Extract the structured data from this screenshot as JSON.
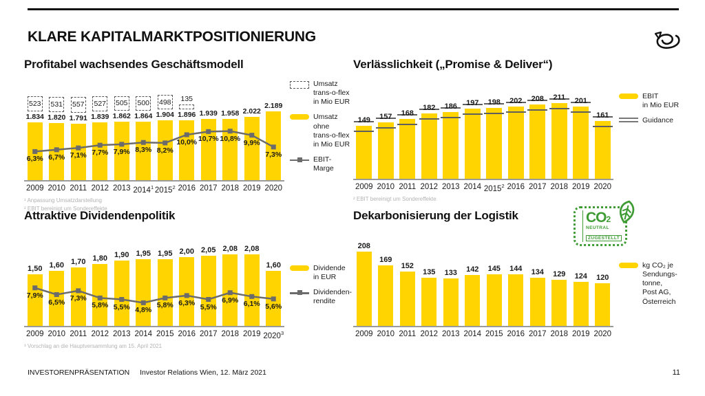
{
  "header": {
    "title": "KLARE KAPITALMARKTPOSITIONIERUNG"
  },
  "footer": {
    "label": "INVESTORENPRÄSENTATION",
    "sub": "Investor Relations Wien, 12. März 2021",
    "page": "11"
  },
  "badge": {
    "co": "CO",
    "sub": "2",
    "neutral": "NEUTRAL",
    "zugestellt": "ZUGESTELLT"
  },
  "colors": {
    "brand_yellow": "#FFD400",
    "line_gray": "#6b6b6b",
    "guidance_gray": "#5f5f5f",
    "badge_green": "#3f9c35"
  },
  "chart_data": [
    {
      "id": "umsatz",
      "type": "bar",
      "title": "Profitabel wachsendes Geschäftsmodell",
      "xlabel": "",
      "ylabel": "",
      "grid": false,
      "legend_position": "right",
      "ylim": [
        0,
        2400
      ],
      "categories": [
        {
          "label": "2009"
        },
        {
          "label": "2010"
        },
        {
          "label": "2011"
        },
        {
          "label": "2012"
        },
        {
          "label": "2013"
        },
        {
          "label": "2014",
          "sup": "1"
        },
        {
          "label": "2015",
          "sup": "2"
        },
        {
          "label": "2016"
        },
        {
          "label": "2017"
        },
        {
          "label": "2018"
        },
        {
          "label": "2019"
        },
        {
          "label": "2020"
        }
      ],
      "series": [
        {
          "name": "Umsatz trans-o-flex in Mio EUR",
          "role": "dashed-box",
          "values": [
            523,
            531,
            557,
            527,
            505,
            500,
            498,
            135,
            null,
            null,
            null,
            null
          ],
          "labels": [
            "523",
            "531",
            "557",
            "527",
            "505",
            "500",
            "498",
            "135",
            "",
            "",
            "",
            ""
          ]
        },
        {
          "name": "Umsatz ohne trans-o-flex in Mio EUR",
          "role": "bar",
          "values": [
            1834,
            1820,
            1791,
            1839,
            1862,
            1864,
            1904,
            1896,
            1939,
            1958,
            2022,
            2189
          ],
          "labels": [
            "1.834",
            "1.820",
            "1.791",
            "1.839",
            "1.862",
            "1.864",
            "1.904",
            "1.896",
            "1.939",
            "1.958",
            "2.022",
            "2.189"
          ]
        },
        {
          "name": "EBIT-Marge",
          "role": "line",
          "values": [
            6.3,
            6.7,
            7.1,
            7.7,
            7.9,
            8.3,
            8.2,
            10.0,
            10.7,
            10.8,
            9.9,
            7.3
          ],
          "labels": [
            "6,3%",
            "6,7%",
            "7,1%",
            "7,7%",
            "7,9%",
            "8,3%",
            "8,2%",
            "10,0%",
            "10,7%",
            "10,8%",
            "9,9%",
            "7,3%"
          ]
        }
      ],
      "legend": [
        {
          "swatch": "dashed-box",
          "label": "Umsatz\ntrans-o-flex\nin Mio EUR"
        },
        {
          "swatch": "bar",
          "label": "Umsatz ohne\ntrans-o-flex\nin Mio EUR"
        },
        {
          "swatch": "line",
          "label": "EBIT-Marge"
        }
      ],
      "footnotes": [
        "¹ Anpassung Umsatzdarstellung",
        "² EBIT bereinigt um Sondereffekte"
      ]
    },
    {
      "id": "ebit",
      "type": "bar",
      "title": "Verlässlichkeit („Promise & Deliver“)",
      "xlabel": "",
      "ylabel": "",
      "grid": false,
      "legend_position": "right",
      "ylim": [
        0,
        230
      ],
      "categories": [
        {
          "label": "2009"
        },
        {
          "label": "2010"
        },
        {
          "label": "2011"
        },
        {
          "label": "2012"
        },
        {
          "label": "2013"
        },
        {
          "label": "2014"
        },
        {
          "label": "2015",
          "sup": "2"
        },
        {
          "label": "2016"
        },
        {
          "label": "2017"
        },
        {
          "label": "2018"
        },
        {
          "label": "2019"
        },
        {
          "label": "2020"
        }
      ],
      "series": [
        {
          "name": "EBIT in Mio EUR",
          "role": "bar",
          "values": [
            149,
            157,
            168,
            182,
            186,
            197,
            198,
            202,
            208,
            211,
            201,
            161
          ],
          "labels": [
            "149",
            "157",
            "168",
            "182",
            "186",
            "197",
            "198",
            "202",
            "208",
            "211",
            "201",
            "161"
          ]
        },
        {
          "name": "Guidance",
          "role": "guidance"
        }
      ],
      "legend": [
        {
          "swatch": "bar",
          "label": "EBIT\nin Mio EUR"
        },
        {
          "swatch": "double-line",
          "label": "Guidance"
        }
      ],
      "footnotes": [
        "² EBIT bereinigt um Sondereffekte"
      ]
    },
    {
      "id": "dividende",
      "type": "bar",
      "title": "Attraktive Dividendenpolitik",
      "xlabel": "",
      "ylabel": "",
      "grid": false,
      "legend_position": "right",
      "ylim": [
        0,
        2.3
      ],
      "categories": [
        {
          "label": "2009"
        },
        {
          "label": "2010"
        },
        {
          "label": "2011"
        },
        {
          "label": "2012"
        },
        {
          "label": "2013"
        },
        {
          "label": "2014"
        },
        {
          "label": "2015"
        },
        {
          "label": "2016"
        },
        {
          "label": "2017"
        },
        {
          "label": "2018"
        },
        {
          "label": "2019"
        },
        {
          "label": "2020",
          "sup": "3"
        }
      ],
      "series": [
        {
          "name": "Dividende in EUR",
          "role": "bar",
          "values": [
            1.5,
            1.6,
            1.7,
            1.8,
            1.9,
            1.95,
            1.95,
            2.0,
            2.05,
            2.08,
            2.08,
            1.6
          ],
          "labels": [
            "1,50",
            "1,60",
            "1,70",
            "1,80",
            "1,90",
            "1,95",
            "1,95",
            "2,00",
            "2,05",
            "2,08",
            "2,08",
            "1,60"
          ]
        },
        {
          "name": "Dividendenrendite",
          "role": "line",
          "values": [
            7.9,
            6.5,
            7.3,
            5.8,
            5.5,
            4.8,
            5.8,
            6.3,
            5.5,
            6.9,
            6.1,
            5.6
          ],
          "labels": [
            "7,9%",
            "6,5%",
            "7,3%",
            "5,8%",
            "5,5%",
            "4,8%",
            "5,8%",
            "6,3%",
            "5,5%",
            "6,9%",
            "6,1%",
            "5,6%"
          ]
        }
      ],
      "legend": [
        {
          "swatch": "bar",
          "label": "Dividende\nin EUR"
        },
        {
          "swatch": "line",
          "label": "Dividenden-\nrendite"
        }
      ],
      "footnotes": [
        "³ Vorschlag an die Hauptversammlung am 15. April 2021"
      ]
    },
    {
      "id": "co2",
      "type": "bar",
      "title": "Dekarbonisierung der Logistik",
      "xlabel": "",
      "ylabel": "",
      "grid": false,
      "legend_position": "right",
      "ylim": [
        0,
        230
      ],
      "categories": [
        {
          "label": "2009"
        },
        {
          "label": "2010"
        },
        {
          "label": "2011"
        },
        {
          "label": "2012"
        },
        {
          "label": "2013"
        },
        {
          "label": "2014"
        },
        {
          "label": "2015"
        },
        {
          "label": "2016"
        },
        {
          "label": "2017"
        },
        {
          "label": "2018"
        },
        {
          "label": "2019"
        },
        {
          "label": "2020"
        }
      ],
      "series": [
        {
          "name": "kg CO₂ je Sendungstonne, Post AG, Österreich",
          "role": "bar",
          "values": [
            208,
            169,
            152,
            135,
            133,
            142,
            145,
            144,
            134,
            129,
            124,
            120
          ],
          "labels": [
            "208",
            "169",
            "152",
            "135",
            "133",
            "142",
            "145",
            "144",
            "134",
            "129",
            "124",
            "120"
          ]
        }
      ],
      "legend": [
        {
          "swatch": "bar",
          "label": "kg CO₂ je\nSendungs-\ntonne,\nPost AG,\nÖsterreich"
        }
      ],
      "footnotes": []
    }
  ]
}
